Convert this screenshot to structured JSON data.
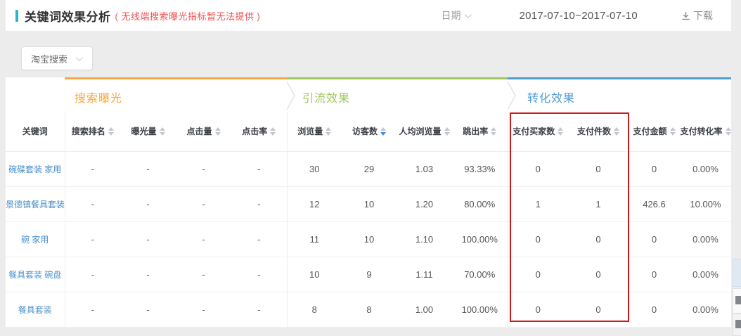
{
  "header": {
    "title": "关键词效果分析",
    "note": "( 无线端搜索曝光指标暂无法提供 )",
    "date_label": "日期",
    "date_range": "2017-07-10~2017-07-10",
    "download_label": "下载"
  },
  "toolbar": {
    "channel_select_value": "淘宝搜索"
  },
  "table": {
    "keyword_header": "关键词",
    "groups": [
      {
        "label": "搜索曝光",
        "color": "#f7a843"
      },
      {
        "label": "引流效果",
        "color": "#9fc75c"
      },
      {
        "label": "转化效果",
        "color": "#4f9cd6"
      }
    ],
    "columns": [
      "搜索排名",
      "曝光量",
      "点击量",
      "点击率",
      "浏览量",
      "访客数",
      "人均浏览量",
      "跳出率",
      "支付买家数",
      "支付件数",
      "支付金额",
      "支付转化率"
    ],
    "sorted_column": "访客数",
    "sort_direction": "desc",
    "rows": [
      {
        "keyword": "碗碟套装 家用",
        "values": [
          "-",
          "-",
          "-",
          "-",
          "30",
          "29",
          "1.03",
          "93.33%",
          "0",
          "0",
          "0",
          "0.00%"
        ]
      },
      {
        "keyword": "景德镇餐具套装",
        "values": [
          "-",
          "-",
          "-",
          "-",
          "12",
          "10",
          "1.20",
          "80.00%",
          "1",
          "1",
          "426.6",
          "10.00%"
        ]
      },
      {
        "keyword": "碗 家用",
        "values": [
          "-",
          "-",
          "-",
          "-",
          "11",
          "10",
          "1.10",
          "100.00%",
          "0",
          "0",
          "0",
          "0.00%"
        ]
      },
      {
        "keyword": "餐具套装 碗盘",
        "values": [
          "-",
          "-",
          "-",
          "-",
          "10",
          "9",
          "1.11",
          "70.00%",
          "0",
          "0",
          "0",
          "0.00%"
        ]
      },
      {
        "keyword": "餐具套装",
        "values": [
          "-",
          "-",
          "-",
          "-",
          "8",
          "8",
          "1.00",
          "100.00%",
          "0",
          "0",
          "0",
          "0.00%"
        ]
      }
    ]
  },
  "annotation": {
    "type": "highlight-rectangle",
    "highlighted_columns": [
      "支付买家数",
      "支付件数"
    ],
    "color": "#cc1b1b"
  },
  "colors": {
    "accent_teal": "#2ab6c2",
    "note_red": "#f25050",
    "link_blue": "#4a8fcb",
    "sort_active_blue": "#3a8ee6",
    "separator_gray": "#e4e4e4"
  }
}
